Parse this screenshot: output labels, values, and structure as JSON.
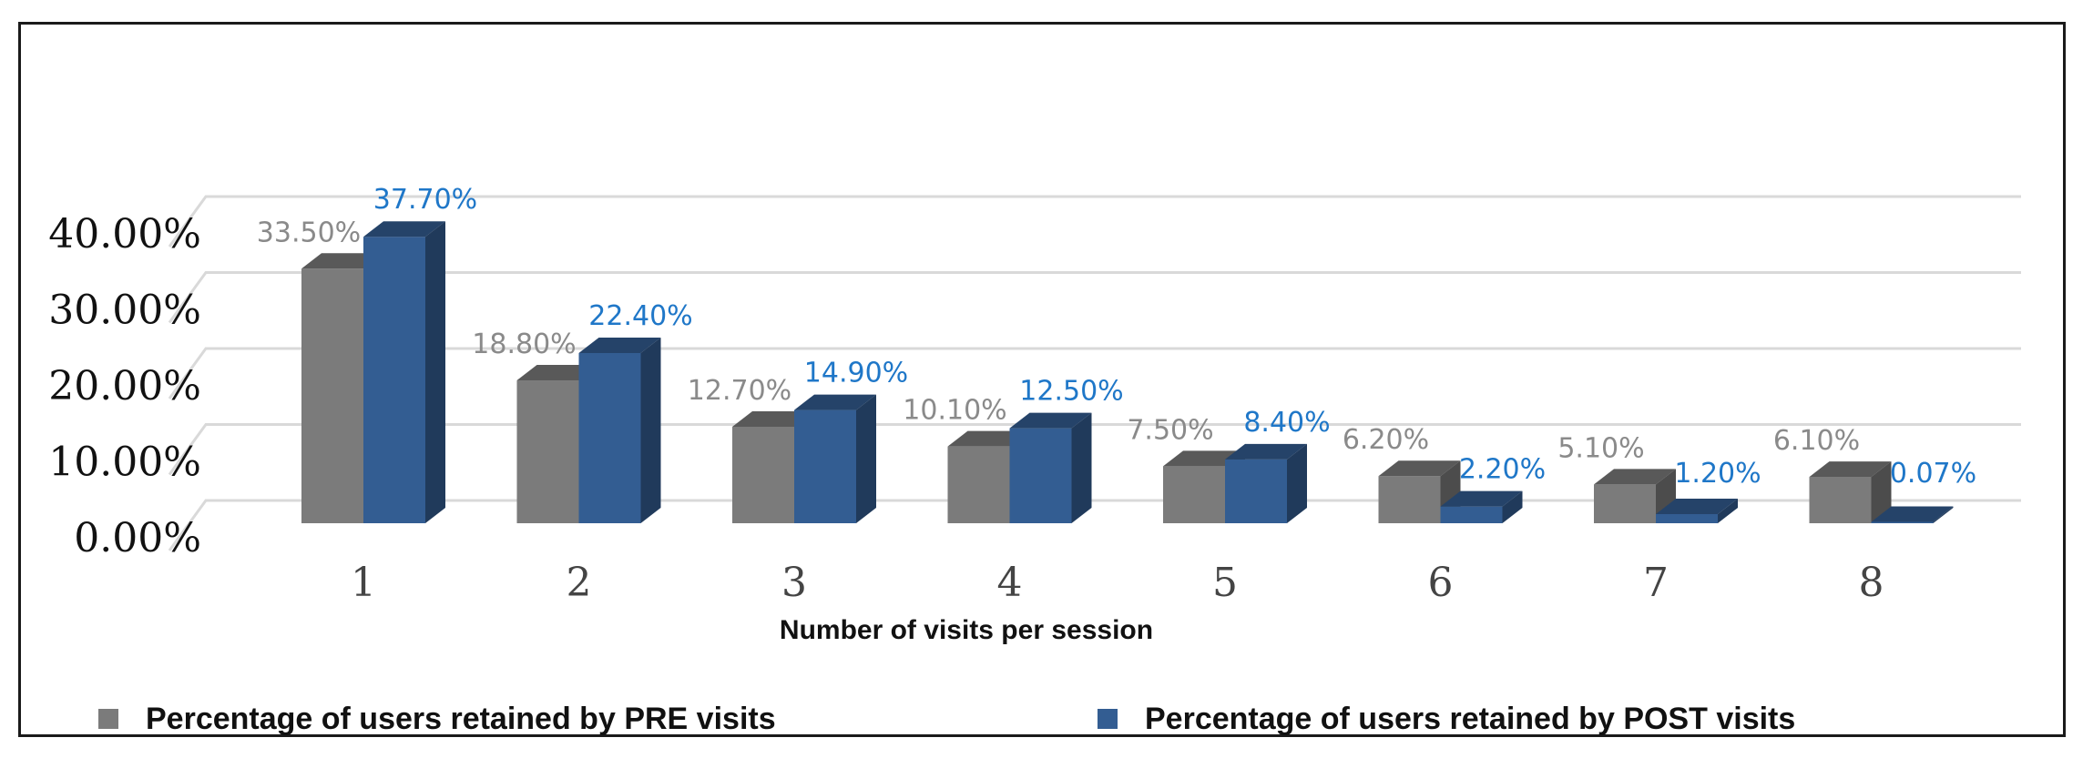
{
  "chart_data": {
    "type": "bar",
    "style": "3d-clustered-column",
    "categories": [
      "1",
      "2",
      "3",
      "4",
      "5",
      "6",
      "7",
      "8"
    ],
    "series": [
      {
        "name": "Percentage of users retained by PRE visits",
        "color": "#7b7b7b",
        "values": [
          33.5,
          18.8,
          12.7,
          10.1,
          7.5,
          6.2,
          5.1,
          6.1
        ],
        "labels": [
          "33.50%",
          "18.80%",
          "12.70%",
          "10.10%",
          "7.50%",
          "6.20%",
          "5.10%",
          "6.10%"
        ]
      },
      {
        "name": "Percentage of users retained by POST visits",
        "color": "#335d92",
        "values": [
          37.7,
          22.4,
          14.9,
          12.5,
          8.4,
          2.2,
          1.2,
          0.07
        ],
        "labels": [
          "37.70%",
          "22.40%",
          "14.90%",
          "12.50%",
          "8.40%",
          "2.20%",
          "1.20%",
          "0.07%"
        ]
      }
    ],
    "yticks": [
      "0.00%",
      "10.00%",
      "20.00%",
      "30.00%",
      "40.00%"
    ],
    "ylim": [
      0,
      40
    ],
    "xlabel": "Number of visits per session",
    "ylabel": "",
    "grid": true,
    "legend_position": "bottom"
  },
  "legend": {
    "pre": {
      "text_start": "Percentage of users retained by ",
      "strong": "PRE",
      "text_end": " visits"
    },
    "post": {
      "text_start": "Percentage of users retained by ",
      "strong": "POST",
      "text_end": " visits"
    }
  },
  "colors": {
    "pre": "#7b7b7b",
    "post": "#335d92",
    "pre_label": "#8a8a8a",
    "post_label": "#1f77c8",
    "grid": "#d9d9d9"
  }
}
